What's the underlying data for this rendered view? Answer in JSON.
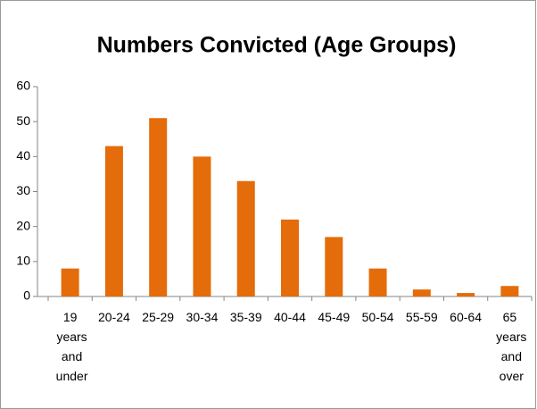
{
  "chart_data": {
    "type": "bar",
    "title": "Numbers Convicted (Age Groups)",
    "categories": [
      "19 years and under",
      "20-24",
      "25-29",
      "30-34",
      "35-39",
      "40-44",
      "45-49",
      "50-54",
      "55-59",
      "60-64",
      "65 years and over"
    ],
    "values": [
      8,
      43,
      51,
      40,
      33,
      22,
      17,
      8,
      2,
      1,
      3
    ],
    "color": "#e46c0a",
    "ylim": [
      0,
      60
    ],
    "yticks": [
      0,
      10,
      20,
      30,
      40,
      50,
      60
    ],
    "grid": false
  }
}
